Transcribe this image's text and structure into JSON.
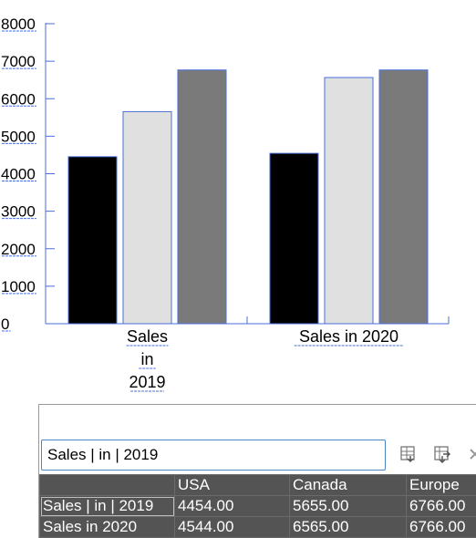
{
  "chart_data": {
    "type": "bar",
    "categories": [
      "Sales | in | 2019",
      "Sales in 2020"
    ],
    "category_display": [
      [
        "Sales",
        "in",
        "2019"
      ],
      [
        "Sales in 2020"
      ]
    ],
    "series": [
      {
        "name": "USA",
        "values": [
          4454,
          4544
        ],
        "color": "#000000"
      },
      {
        "name": "Canada",
        "values": [
          5655,
          6565
        ],
        "color": "#e0e0e0"
      },
      {
        "name": "Europe",
        "values": [
          6766,
          6766
        ],
        "color": "#7a7a7a"
      }
    ],
    "ylim": [
      0,
      8000
    ],
    "yticks": [
      "0",
      "1000",
      "2000",
      "3000",
      "4000",
      "5000",
      "6000",
      "7000",
      "8000"
    ],
    "grid": false,
    "selection_color": "#4a6fd8"
  },
  "editor": {
    "input_value": "Sales | in | 2019",
    "tools": {
      "import_icon": "import-data-icon",
      "transpose_icon": "transpose-icon",
      "close_icon": "close-icon"
    },
    "grid": {
      "columns": [
        "",
        "USA",
        "Canada",
        "Europe"
      ],
      "rows": [
        {
          "label": "Sales | in | 2019",
          "values": [
            "4454.00",
            "5655.00",
            "6766.00"
          ]
        },
        {
          "label": "Sales in 2020",
          "values": [
            "4544.00",
            "6565.00",
            "6766.00"
          ]
        }
      ]
    }
  }
}
